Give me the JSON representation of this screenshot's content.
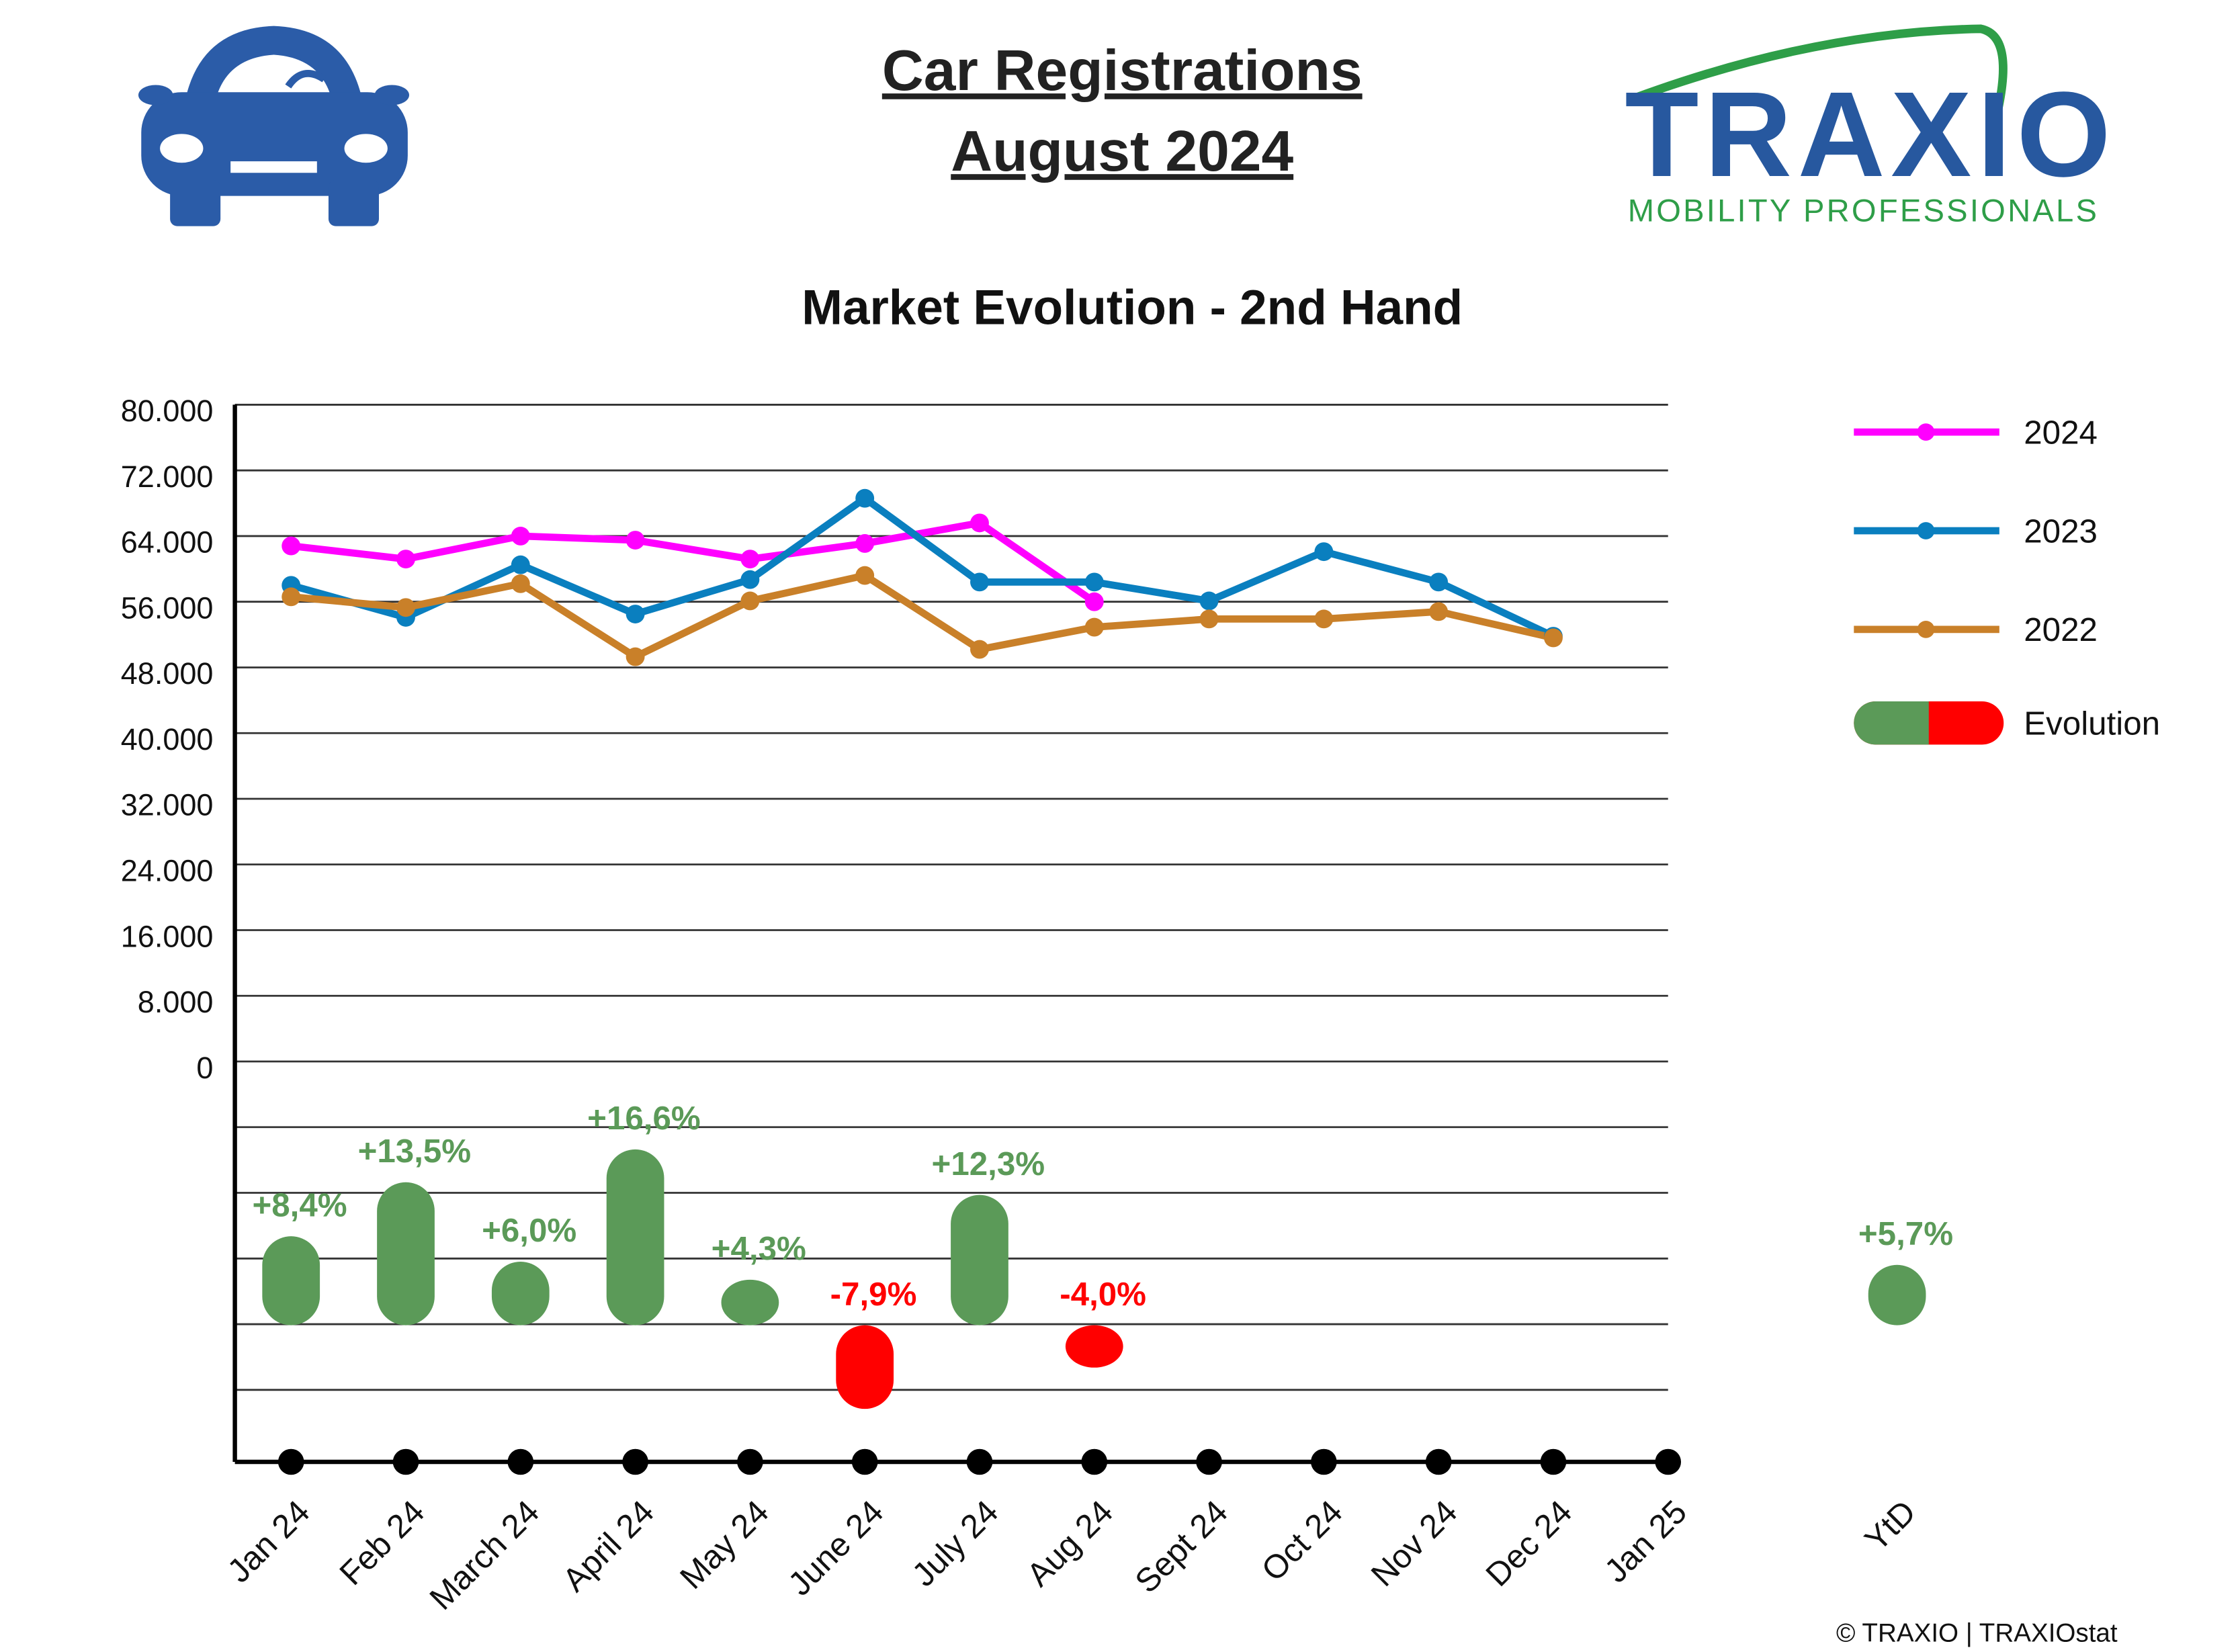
{
  "header": {
    "title": "Car Registrations",
    "subtitle": "August 2024"
  },
  "logo": {
    "name": "TRAXIO",
    "tagline": "MOBILITY PROFESSIONALS"
  },
  "footer": "© TRAXIO | TRAXIOstat",
  "chart_data": {
    "type": "line",
    "title": "Market Evolution - 2nd Hand",
    "categories": [
      "Jan 24",
      "Feb 24",
      "March 24",
      "April 24",
      "May 24",
      "June 24",
      "July 24",
      "Aug 24",
      "Sept 24",
      "Oct 24",
      "Nov 24",
      "Dec 24",
      "Jan 25"
    ],
    "series": [
      {
        "name": "2024",
        "color": "#ff00ff",
        "values": [
          62800,
          61200,
          64000,
          63500,
          61200,
          63100,
          65600,
          56000,
          null,
          null,
          null,
          null,
          null
        ]
      },
      {
        "name": "2023",
        "color": "#0a7fbf",
        "values": [
          58000,
          54100,
          60500,
          54500,
          58700,
          68600,
          58400,
          58400,
          56100,
          62100,
          58400,
          51800,
          null
        ]
      },
      {
        "name": "2022",
        "color": "#c98029",
        "values": [
          56600,
          55300,
          58200,
          49300,
          56100,
          59200,
          50200,
          52900,
          53900,
          53900,
          54800,
          51600,
          null
        ]
      }
    ],
    "ylim": [
      0,
      80000
    ],
    "yticks": [
      0,
      {
        "value": 8000,
        "label": "8.000"
      },
      {
        "value": 16000,
        "label": "16.000"
      },
      {
        "value": 24000,
        "label": "24.000"
      },
      {
        "value": 32000,
        "label": "32.000"
      },
      {
        "value": 40000,
        "label": "40.000"
      },
      {
        "value": 48000,
        "label": "48.000"
      },
      {
        "value": 56000,
        "label": "56.000"
      },
      {
        "value": 64000,
        "label": "64.000"
      },
      {
        "value": 72000,
        "label": "72.000"
      },
      {
        "value": 80000,
        "label": "80.000"
      }
    ],
    "grid": true,
    "legend": "right",
    "evolution": {
      "type": "bar",
      "name": "Evolution",
      "values": [
        8.4,
        13.5,
        6.0,
        16.6,
        4.3,
        -7.9,
        12.3,
        -4.0
      ],
      "value_labels": [
        "+8,4%",
        "+13,5%",
        "+6,0%",
        "+16,6%",
        "+4,3%",
        "-7,9%",
        "+12,3%",
        "-4,0%"
      ],
      "colors": {
        "positive": "#5b9a58",
        "negative": "#ff0000"
      },
      "y2lim": [
        -12.9,
        24.9
      ]
    },
    "ytd": {
      "category": "YtD",
      "value": 5.7,
      "value_label": "+5,7%"
    }
  }
}
